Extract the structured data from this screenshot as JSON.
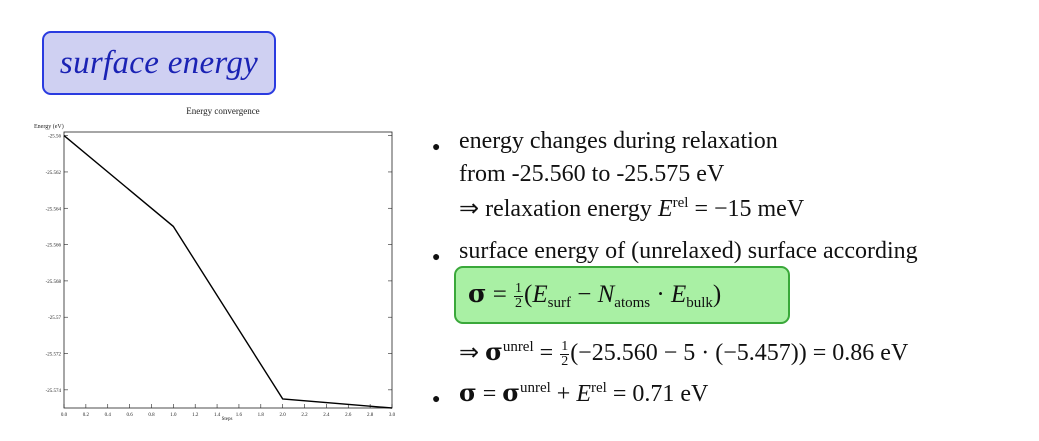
{
  "title": "surface energy",
  "chart_data": {
    "type": "line",
    "title": "Energy convergence",
    "ylabel": "Energy (eV)",
    "xlabel": "Steps",
    "x": [
      0,
      1,
      2,
      3
    ],
    "y": [
      -25.56,
      -25.565,
      -25.5745,
      -25.575
    ],
    "xlim": [
      0,
      3
    ],
    "ylim": [
      -25.575,
      -25.5598
    ],
    "xticks": [
      "0.0",
      "0.2",
      "0.4",
      "0.6",
      "0.8",
      "1.0",
      "1.2",
      "1.4",
      "1.6",
      "1.8",
      "2.0",
      "2.2",
      "2.4",
      "2.6",
      "2.8",
      "3.0"
    ],
    "yticks": [
      "-25.56",
      "-25.562",
      "-25.564",
      "-25.566",
      "-25.568",
      "-25.57",
      "-25.572",
      "-25.574"
    ],
    "ytick_values": [
      -25.56,
      -25.562,
      -25.564,
      -25.566,
      -25.568,
      -25.57,
      -25.572,
      -25.574
    ],
    "grid": false,
    "line_color": "#000000"
  },
  "bullets": {
    "b1_line1": "energy changes during relaxation",
    "b1_line2": "from -25.560 to -25.575 eV",
    "b1_line3_prefix": "⇒ relaxation energy ",
    "b1_line3_suffix": " = −15 meV",
    "b2_line1": "surface energy of (unrelaxed) surface according",
    "b2_result": " = ",
    "b2_result_rest": "(−25.560 − 5 · (−5.457)) = 0.86 eV",
    "b3_rest": " = 0.71 eV"
  },
  "symbols": {
    "sigma": "σ",
    "E": "E",
    "N": "N",
    "rel": "rel",
    "unrel": "unrel",
    "surf": "surf",
    "atoms": "atoms",
    "bulk": "bulk",
    "half_num": "1",
    "half_den": "2",
    "implies": "⇒",
    "plus": " + ",
    "eq": " = ",
    "lparen": "(",
    "minus": " − ",
    "dot": " · ",
    "rparen": ")"
  },
  "colors": {
    "title_border": "#2a3be0",
    "title_fill": "#cfd0f2",
    "title_text": "#1a22b4",
    "formula_border": "#3aa83a",
    "formula_fill": "#a9f0a4"
  }
}
